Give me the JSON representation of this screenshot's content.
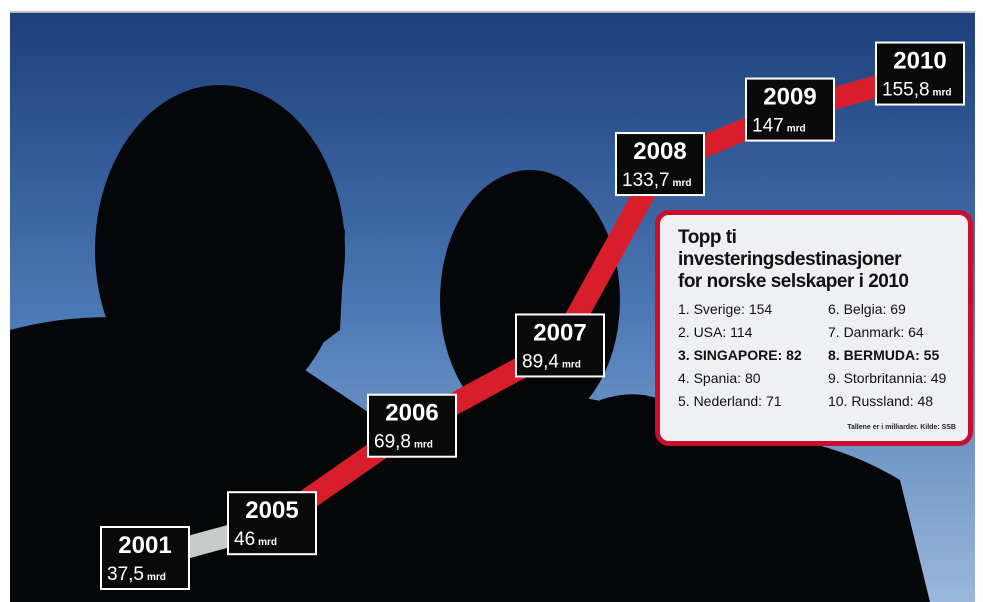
{
  "chart_data": {
    "type": "line",
    "categories": [
      "2001",
      "2005",
      "2006",
      "2007",
      "2008",
      "2009",
      "2010"
    ],
    "values": [
      37.5,
      46,
      69.8,
      89.4,
      133.7,
      147,
      155.8
    ],
    "value_labels": [
      "37,5",
      "46",
      "69,8",
      "89,4",
      "133,7",
      "147",
      "155,8"
    ],
    "unit": "mrd",
    "color": "#d81e2a",
    "ylim": [
      27,
      174
    ]
  },
  "info_box": {
    "title": [
      "Topp ti investeringsdestinasjoner",
      "for norske selskaper i 2010"
    ],
    "items": [
      {
        "text": "1. Sverige: 154",
        "bold": false
      },
      {
        "text": "2. USA: 114",
        "bold": false
      },
      {
        "text": "3. SINGAPORE: 82",
        "bold": true
      },
      {
        "text": "4. Spania: 80",
        "bold": false
      },
      {
        "text": "5. Nederland: 71",
        "bold": false
      },
      {
        "text": "6. Belgia: 69",
        "bold": false
      },
      {
        "text": "7. Danmark: 64",
        "bold": false
      },
      {
        "text": "8. BERMUDA: 55",
        "bold": true
      },
      {
        "text": "9. Storbritannia: 49",
        "bold": false
      },
      {
        "text": "10. Russland: 48",
        "bold": false
      }
    ],
    "note": "Tallene er i milliarder. Kilde: SSB"
  }
}
